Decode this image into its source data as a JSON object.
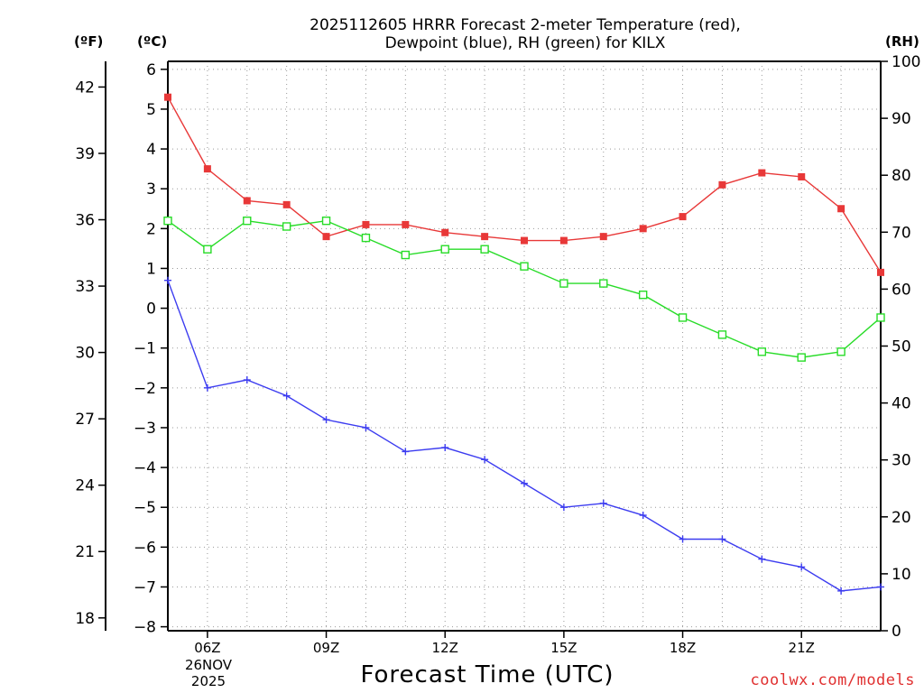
{
  "title_line1": "2025112605 HRRR Forecast 2-meter Temperature (red),",
  "title_line2": "Dewpoint (blue), RH (green) for KILX",
  "unit_f": "(ºF)",
  "unit_c": "(ºC)",
  "unit_rh": "(RH)",
  "xlabel": "Forecast Time (UTC)",
  "credit": "coolwx.com/models",
  "date_line1": "26NOV",
  "date_line2": "2025",
  "colors": {
    "temperature": "#e83838",
    "dewpoint": "#3c3cf0",
    "rh": "#28dc28",
    "grid": "#999999"
  },
  "chart_data": {
    "type": "line",
    "title": "2025112605 HRRR Forecast 2-meter Temperature (red), Dewpoint (blue), RH (green) for KILX",
    "xlabel": "Forecast Time (UTC)",
    "x_hours": [
      5,
      6,
      7,
      8,
      9,
      10,
      11,
      12,
      13,
      14,
      15,
      16,
      17,
      18,
      19,
      20,
      21,
      22,
      23
    ],
    "xlim": [
      5,
      23
    ],
    "x_ticks": [
      6,
      9,
      12,
      15,
      18,
      21
    ],
    "x_tick_labels": [
      "06Z",
      "09Z",
      "12Z",
      "15Z",
      "18Z",
      "21Z"
    ],
    "y_left_c": {
      "label": "(ºC)",
      "range": [
        -8.1,
        6.2
      ],
      "ticks": [
        6,
        5,
        4,
        3,
        2,
        1,
        0,
        -1,
        -2,
        -3,
        -4,
        -5,
        -6,
        -7,
        -8
      ]
    },
    "y_left_f": {
      "label": "(ºF)",
      "ticks": [
        42,
        39,
        36,
        33,
        30,
        27,
        24,
        21,
        18
      ]
    },
    "y_right_rh": {
      "label": "(RH)",
      "range": [
        0,
        100
      ],
      "ticks": [
        100,
        90,
        80,
        70,
        60,
        50,
        40,
        30,
        20,
        10,
        0
      ]
    },
    "series": [
      {
        "name": "Temperature",
        "unit": "C",
        "marker": "filled-square",
        "values": [
          5.3,
          3.5,
          2.7,
          2.6,
          1.8,
          2.1,
          2.1,
          1.9,
          1.8,
          1.7,
          1.7,
          1.8,
          2.0,
          2.3,
          3.1,
          3.4,
          3.3,
          2.5,
          0.9
        ]
      },
      {
        "name": "Dewpoint",
        "unit": "C",
        "marker": "plus",
        "values": [
          0.7,
          -2.0,
          -1.8,
          -2.2,
          -2.8,
          -3.0,
          -3.6,
          -3.5,
          -3.8,
          -4.4,
          -5.0,
          -4.9,
          -5.2,
          -5.8,
          -5.8,
          -6.3,
          -6.5,
          -7.1,
          -7.0
        ]
      },
      {
        "name": "RH",
        "unit": "%",
        "marker": "open-square",
        "values": [
          72,
          67,
          72,
          71,
          72,
          69,
          66,
          67,
          67,
          64,
          61,
          61,
          59,
          55,
          52,
          49,
          48,
          49,
          55
        ]
      }
    ]
  }
}
